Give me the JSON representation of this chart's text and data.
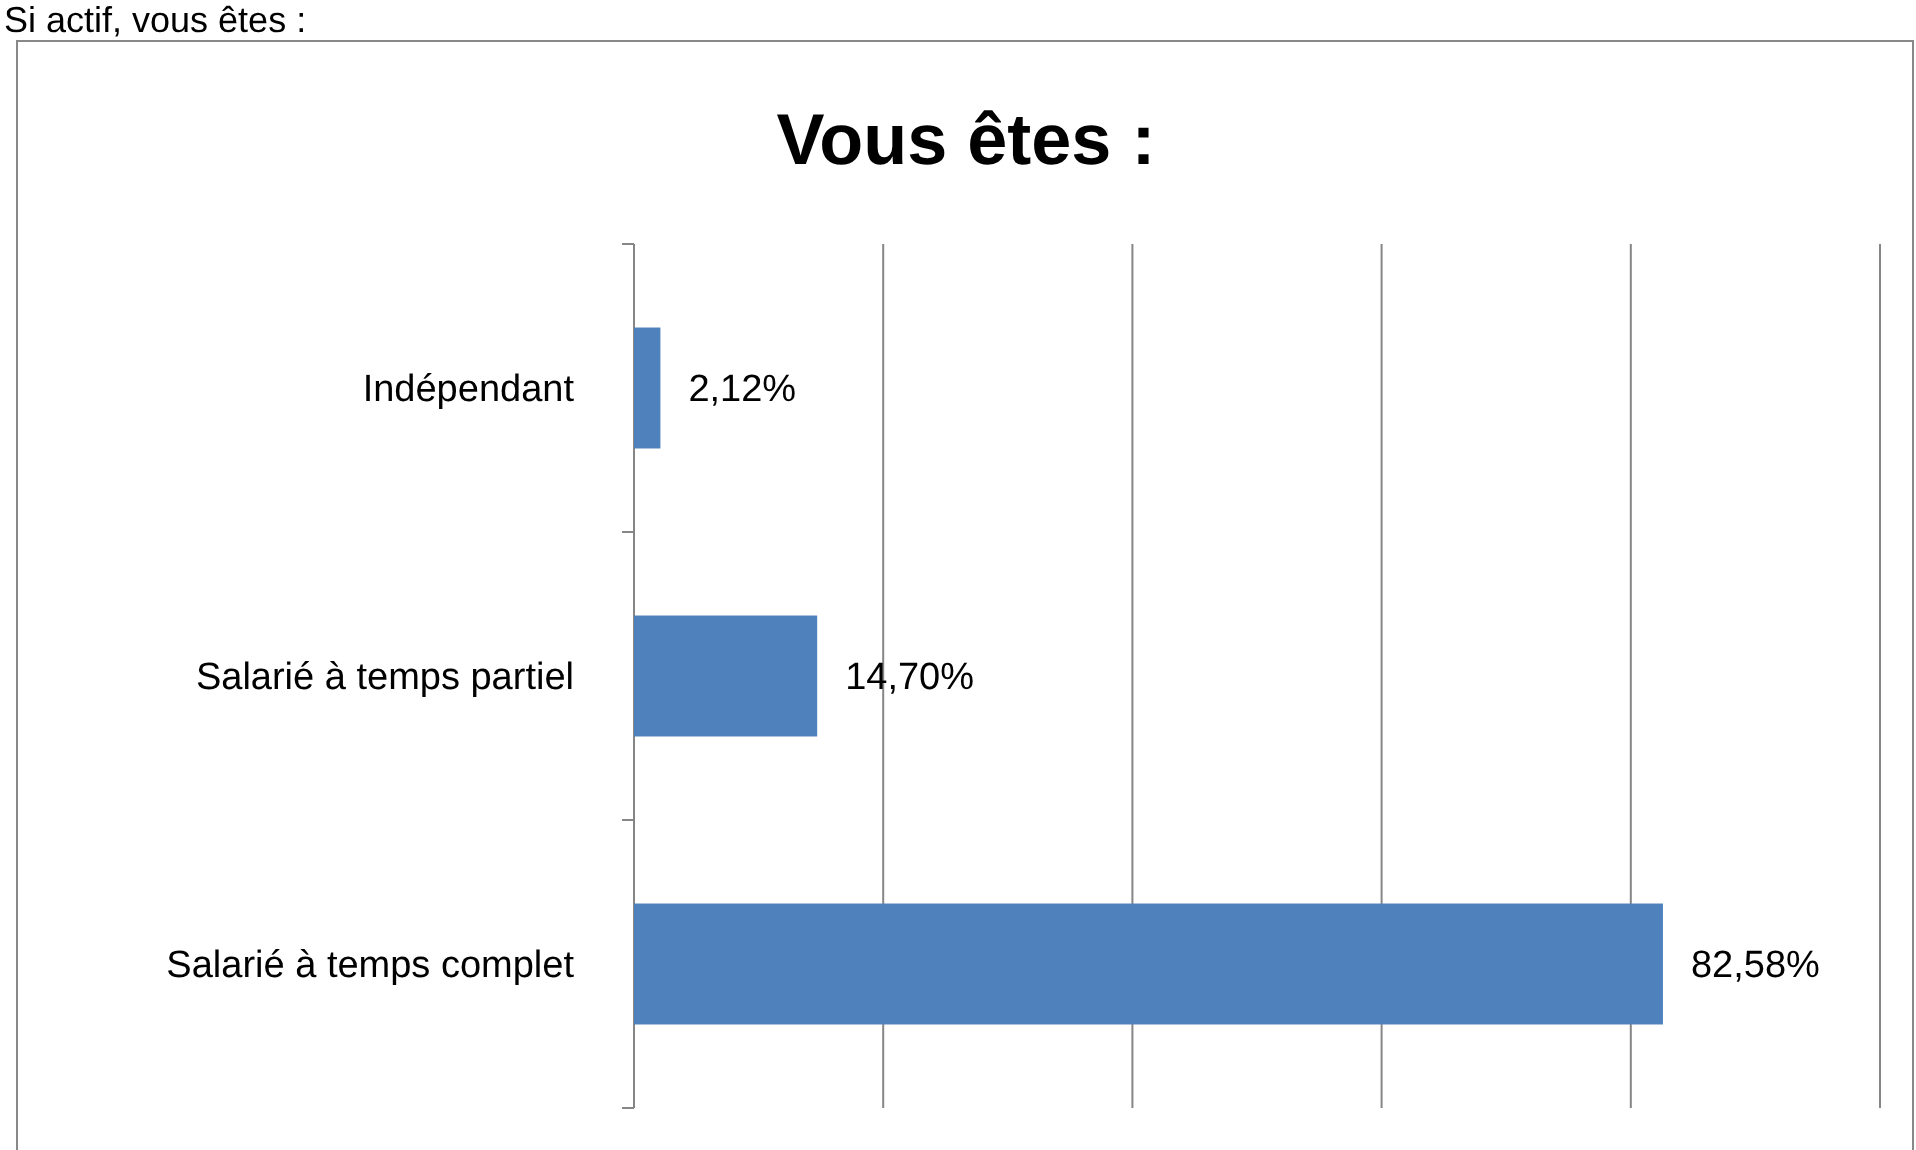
{
  "chart_data": {
    "type": "bar",
    "orientation": "horizontal",
    "title": "Vous êtes :",
    "annotations": [
      "Si actif, vous êtes :"
    ],
    "categories": [
      "Indépendant",
      "Salarié à temps partiel",
      "Salarié à temps complet"
    ],
    "values": [
      2.12,
      14.7,
      82.58
    ],
    "value_labels": [
      "2,12%",
      "14,70%",
      "82,58%"
    ],
    "color": "#4f81bd",
    "xlim": [
      0,
      100
    ],
    "xticks": [
      {
        "value": 0,
        "label": null
      },
      {
        "value": 20,
        "label": null
      },
      {
        "value": 40,
        "label": null
      },
      {
        "value": 60,
        "label": null
      },
      {
        "value": 80,
        "label": null
      },
      {
        "value": 100,
        "label": null
      }
    ],
    "grid": "x",
    "tick_labels": "y"
  }
}
